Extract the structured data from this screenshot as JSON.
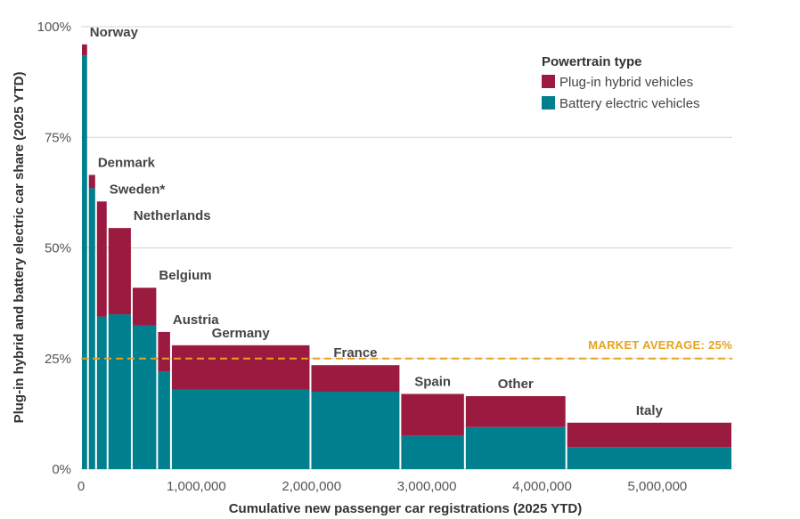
{
  "chart_data": {
    "type": "bar",
    "subtype": "variable-width stacked bar (marimekko)",
    "xlabel": "Cumulative new passenger car registrations (2025 YTD)",
    "ylabel": "Plug-in hybrid and battery electric car share (2025 YTD)",
    "xlim": [
      0,
      5650000
    ],
    "ylim": [
      0,
      100
    ],
    "x_ticks": [
      "0",
      "1,000,000",
      "2,000,000",
      "3,000,000",
      "4,000,000",
      "5,000,000"
    ],
    "x_tick_values": [
      0,
      1000000,
      2000000,
      3000000,
      4000000,
      5000000
    ],
    "y_ticks": [
      "0%",
      "25%",
      "50%",
      "75%",
      "100%"
    ],
    "y_tick_values": [
      0,
      25,
      50,
      75,
      100
    ],
    "grid": "horizontal",
    "legend": {
      "title": "Powertrain type",
      "placement": "top-right",
      "entries": [
        "Plug-in hybrid vehicles",
        "Battery electric vehicles"
      ]
    },
    "colors": {
      "phev": "#9b1b40",
      "bev": "#00808f",
      "average": "#e8a21a"
    },
    "series": [
      {
        "name": "Battery electric vehicles",
        "values": [
          93.5,
          63.5,
          34.5,
          35,
          32.5,
          22,
          18,
          17.5,
          7.5,
          9.5,
          5
        ]
      },
      {
        "name": "Plug-in hybrid vehicles",
        "values": [
          2.5,
          3,
          26,
          19.5,
          8.5,
          9,
          10,
          6,
          9.5,
          7,
          5.5
        ]
      }
    ],
    "categories": [
      "Norway",
      "Denmark",
      "Sweden*",
      "Netherlands",
      "Belgium",
      "Austria",
      "Germany",
      "France",
      "Spain",
      "Other",
      "Italy"
    ],
    "category_labels": [
      "Norway",
      "Denmark",
      "Sweden*",
      "Netherlands",
      "Belgium",
      "Austria",
      "Germany",
      "France",
      "Spain",
      "Other",
      "Italy"
    ],
    "x_start": [
      0,
      60000,
      130000,
      230000,
      440000,
      660000,
      780000,
      1990000,
      2770000,
      3330000,
      4210000
    ],
    "x_end": [
      60000,
      130000,
      230000,
      440000,
      660000,
      780000,
      1990000,
      2770000,
      3330000,
      4210000,
      5650000
    ],
    "annotation": {
      "text": "MARKET AVERAGE: 25%",
      "value": 25
    }
  }
}
